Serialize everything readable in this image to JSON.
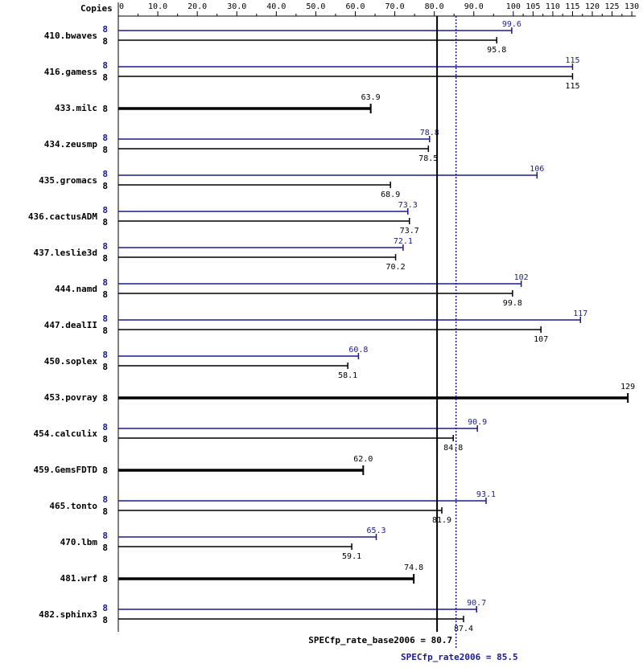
{
  "chart_data": {
    "type": "bar",
    "orientation": "horizontal",
    "header_label": "Copies",
    "x_ticks": [
      0,
      10.0,
      20.0,
      30.0,
      40.0,
      50.0,
      60.0,
      70.0,
      80.0,
      90.0,
      100,
      105,
      110,
      115,
      120,
      125,
      130
    ],
    "x_tick_labels": [
      "0",
      "10.0",
      "20.0",
      "30.0",
      "40.0",
      "50.0",
      "60.0",
      "70.0",
      "80.0",
      "90.0",
      "100",
      "105",
      "110",
      "115",
      "120",
      "125",
      "130"
    ],
    "xlim": [
      0,
      131
    ],
    "colors": {
      "peak": "#1a1a8c",
      "base": "#000000"
    },
    "benchmarks": [
      {
        "name": "410.bwaves",
        "peak_copies": "8",
        "peak": 99.6,
        "peak_label": "99.6",
        "base_copies": "8",
        "base": 95.8,
        "base_label": "95.8"
      },
      {
        "name": "416.gamess",
        "peak_copies": "8",
        "peak": 115,
        "peak_label": "115",
        "base_copies": "8",
        "base": 115,
        "base_label": "115"
      },
      {
        "name": "433.milc",
        "combined": true,
        "base_copies": "8",
        "base": 63.9,
        "base_label": "63.9"
      },
      {
        "name": "434.zeusmp",
        "peak_copies": "8",
        "peak": 78.8,
        "peak_label": "78.8",
        "base_copies": "8",
        "base": 78.5,
        "base_label": "78.5"
      },
      {
        "name": "435.gromacs",
        "peak_copies": "8",
        "peak": 106,
        "peak_label": "106",
        "base_copies": "8",
        "base": 68.9,
        "base_label": "68.9"
      },
      {
        "name": "436.cactusADM",
        "peak_copies": "8",
        "peak": 73.3,
        "peak_label": "73.3",
        "base_copies": "8",
        "base": 73.7,
        "base_label": "73.7"
      },
      {
        "name": "437.leslie3d",
        "peak_copies": "8",
        "peak": 72.1,
        "peak_label": "72.1",
        "base_copies": "8",
        "base": 70.2,
        "base_label": "70.2"
      },
      {
        "name": "444.namd",
        "peak_copies": "8",
        "peak": 102,
        "peak_label": "102",
        "base_copies": "8",
        "base": 99.8,
        "base_label": "99.8"
      },
      {
        "name": "447.dealII",
        "peak_copies": "8",
        "peak": 117,
        "peak_label": "117",
        "base_copies": "8",
        "base": 107,
        "base_label": "107"
      },
      {
        "name": "450.soplex",
        "peak_copies": "8",
        "peak": 60.8,
        "peak_label": "60.8",
        "base_copies": "8",
        "base": 58.1,
        "base_label": "58.1"
      },
      {
        "name": "453.povray",
        "combined": true,
        "base_copies": "8",
        "base": 129,
        "base_label": "129"
      },
      {
        "name": "454.calculix",
        "peak_copies": "8",
        "peak": 90.9,
        "peak_label": "90.9",
        "base_copies": "8",
        "base": 84.8,
        "base_label": "84.8"
      },
      {
        "name": "459.GemsFDTD",
        "combined": true,
        "base_copies": "8",
        "base": 62.0,
        "base_label": "62.0"
      },
      {
        "name": "465.tonto",
        "peak_copies": "8",
        "peak": 93.1,
        "peak_label": "93.1",
        "base_copies": "8",
        "base": 81.9,
        "base_label": "81.9"
      },
      {
        "name": "470.lbm",
        "peak_copies": "8",
        "peak": 65.3,
        "peak_label": "65.3",
        "base_copies": "8",
        "base": 59.1,
        "base_label": "59.1"
      },
      {
        "name": "481.wrf",
        "combined": true,
        "base_copies": "8",
        "base": 74.8,
        "base_label": "74.8"
      },
      {
        "name": "482.sphinx3",
        "peak_copies": "8",
        "peak": 90.7,
        "peak_label": "90.7",
        "base_copies": "8",
        "base": 87.4,
        "base_label": "87.4"
      }
    ],
    "base_mean": 80.7,
    "peak_mean": 85.5,
    "base_mean_label": "SPECfp_rate_base2006 = 80.7",
    "peak_mean_label": "SPECfp_rate2006 = 85.5"
  }
}
